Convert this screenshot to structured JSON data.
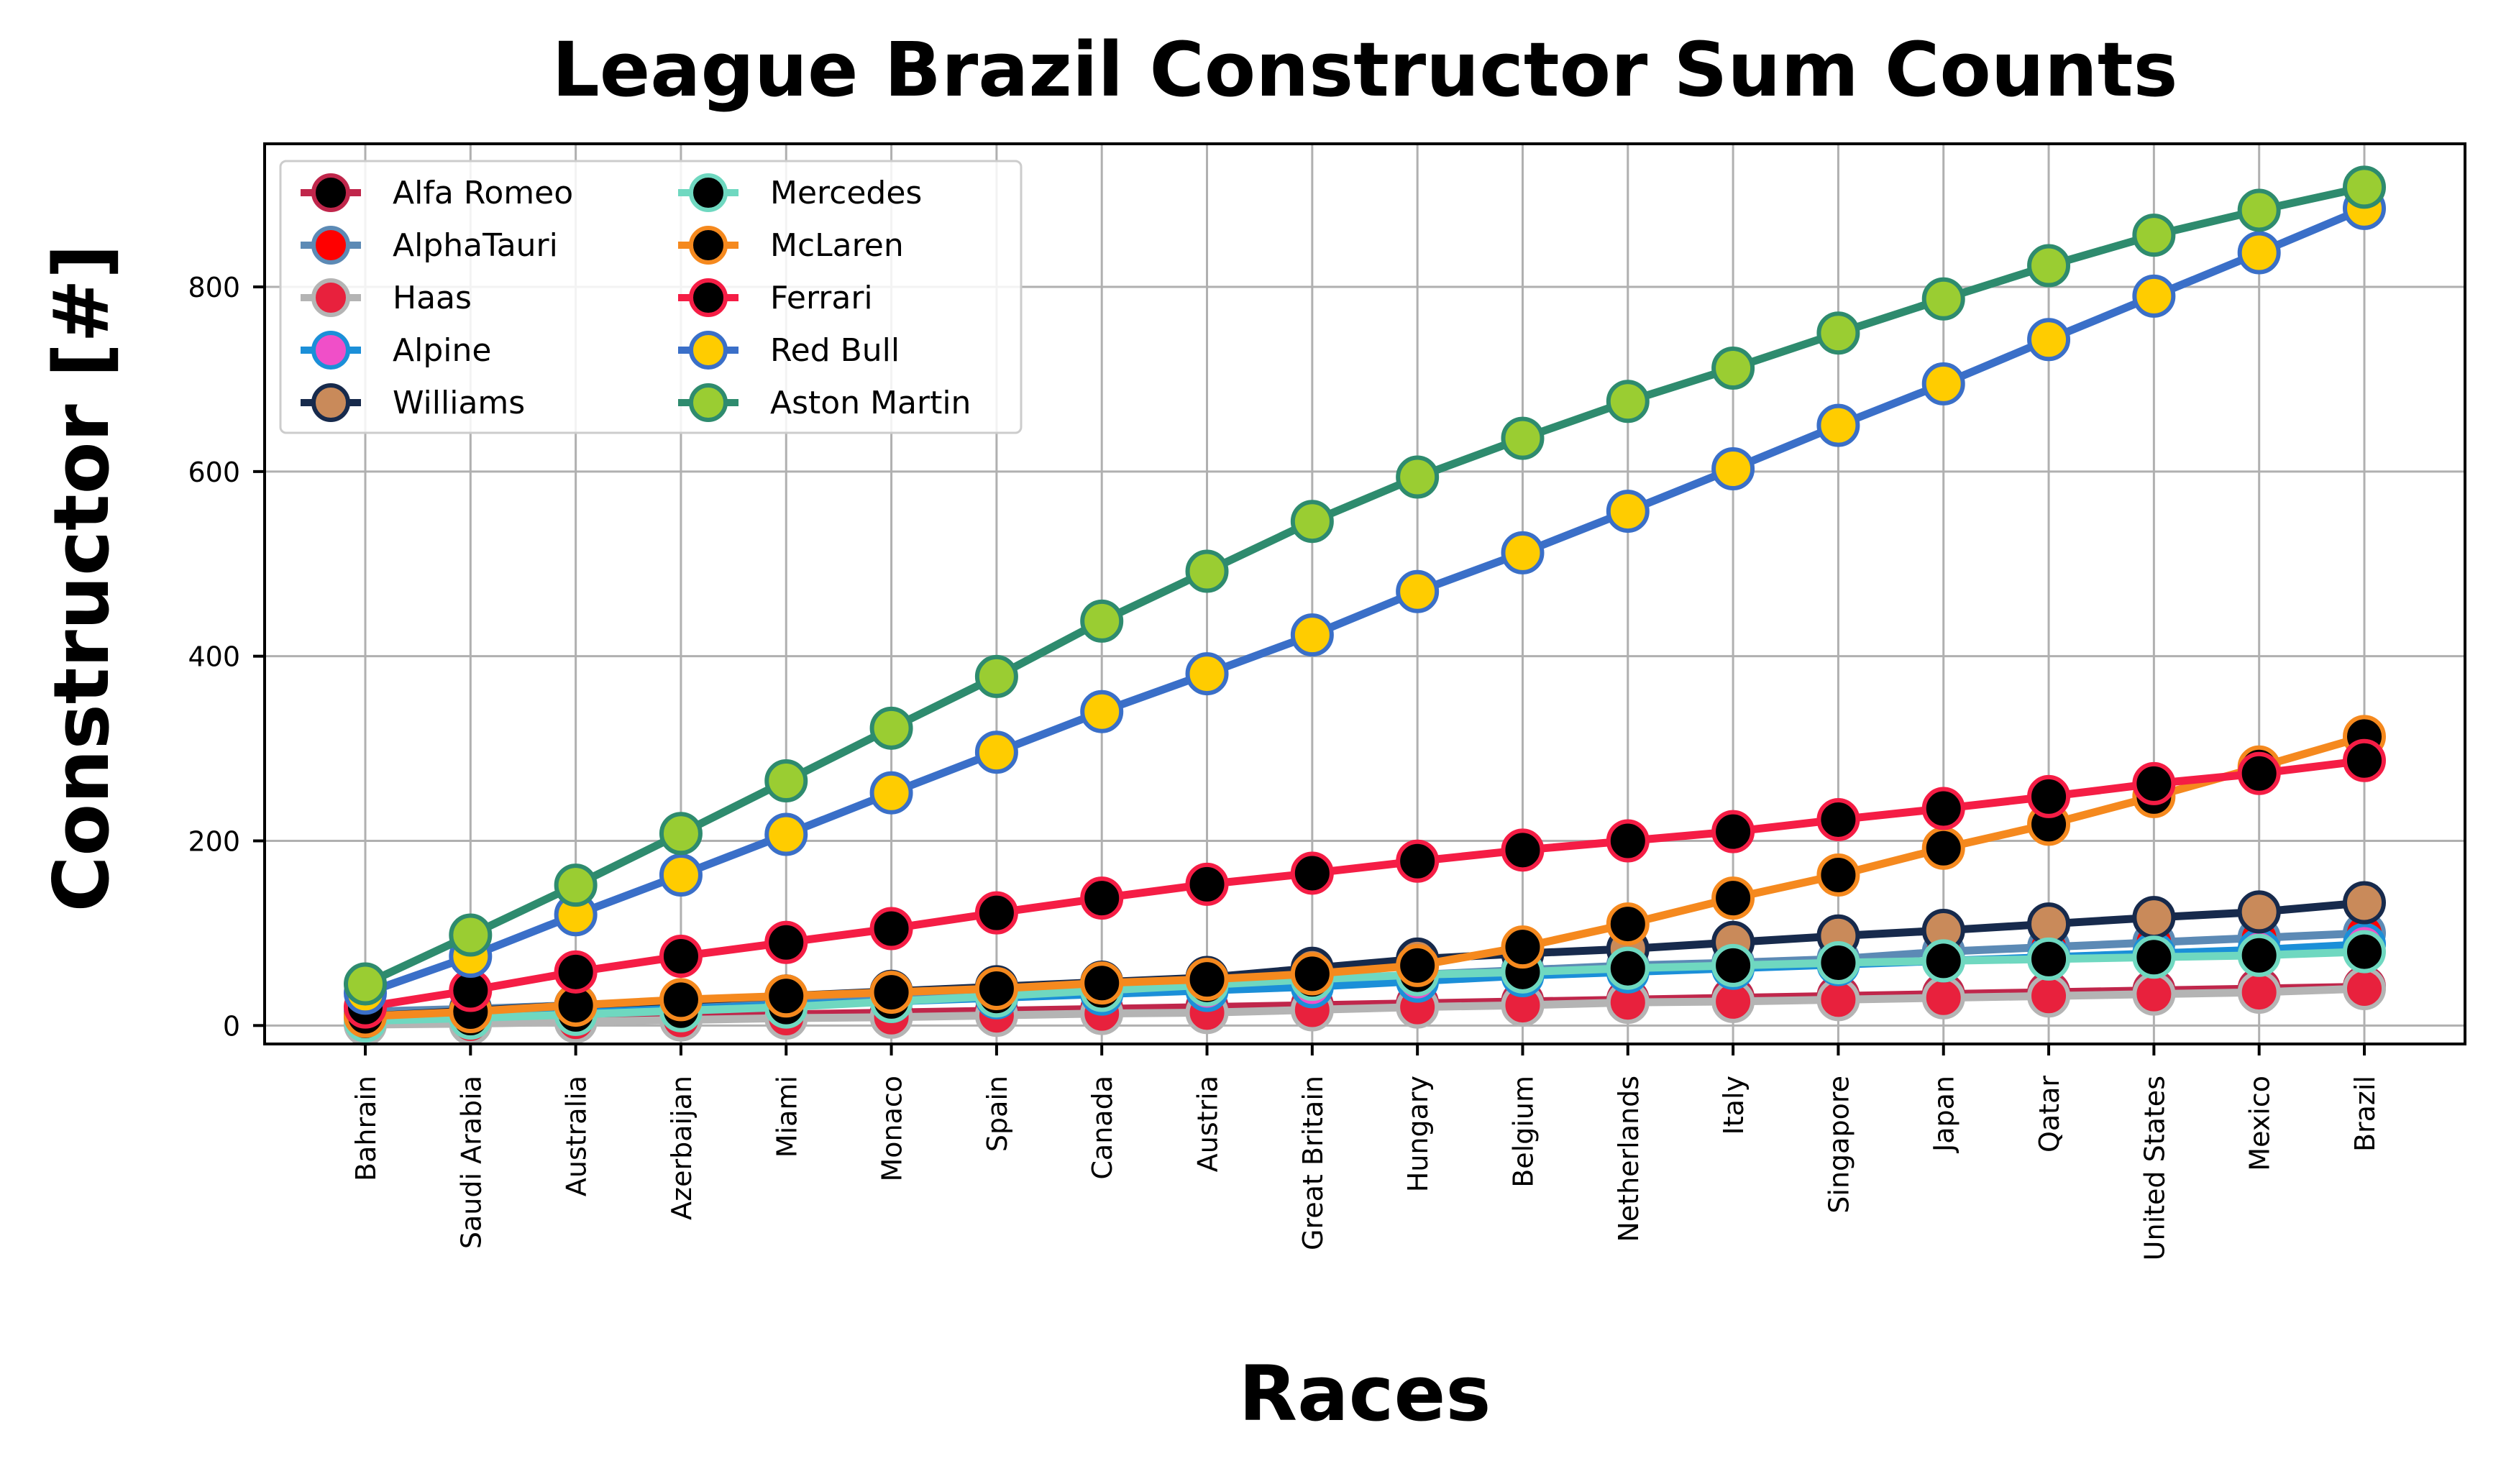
{
  "chart_data": {
    "type": "line",
    "title": "League Brazil Constructor Sum Counts",
    "xlabel": "Races",
    "ylabel": "Constructor [#]",
    "categories": [
      "Bahrain",
      "Saudi Arabia",
      "Australia",
      "Azerbaijan",
      "Miami",
      "Monaco",
      "Spain",
      "Canada",
      "Austria",
      "Great Britain",
      "Hungary",
      "Belgium",
      "Netherlands",
      "Italy",
      "Singapore",
      "Japan",
      "Qatar",
      "United States",
      "Mexico",
      "Brazil"
    ],
    "ylim": [
      -20,
      955
    ],
    "yticks": [
      0,
      200,
      400,
      600,
      800
    ],
    "grid": true,
    "legend_position": "upper-left",
    "legend_columns": 2,
    "series": [
      {
        "name": "Alfa Romeo",
        "line_color": "#C0264B",
        "marker_fill": "#000000",
        "marker_edge": "#C0264B",
        "values": [
          2,
          5,
          8,
          10,
          12,
          14,
          16,
          18,
          20,
          22,
          24,
          26,
          28,
          30,
          32,
          34,
          36,
          38,
          40,
          42
        ]
      },
      {
        "name": "AlphaTauri",
        "line_color": "#5C8AB5",
        "marker_fill": "#FF0000",
        "marker_edge": "#5C8AB5",
        "values": [
          15,
          18,
          22,
          25,
          27,
          30,
          36,
          40,
          45,
          48,
          55,
          60,
          65,
          68,
          72,
          80,
          85,
          90,
          95,
          100
        ]
      },
      {
        "name": "Haas",
        "line_color": "#B4B4B4",
        "marker_fill": "#E8213D",
        "marker_edge": "#B4B4B4",
        "values": [
          1,
          2,
          4,
          6,
          8,
          9,
          11,
          13,
          14,
          17,
          20,
          22,
          25,
          26,
          28,
          30,
          32,
          34,
          36,
          40
        ]
      },
      {
        "name": "Alpine",
        "line_color": "#1B8FD8",
        "marker_fill": "#F04FC8",
        "marker_edge": "#1B8FD8",
        "values": [
          8,
          10,
          14,
          18,
          22,
          26,
          30,
          34,
          38,
          42,
          48,
          54,
          58,
          62,
          66,
          70,
          74,
          78,
          82,
          88
        ]
      },
      {
        "name": "Williams",
        "line_color": "#172A4C",
        "marker_fill": "#C98A5A",
        "marker_edge": "#172A4C",
        "values": [
          10,
          16,
          22,
          27,
          32,
          37,
          42,
          47,
          52,
          62,
          72,
          78,
          83,
          90,
          97,
          103,
          110,
          117,
          123,
          133
        ]
      },
      {
        "name": "Mercedes",
        "line_color": "#6FD8C0",
        "marker_fill": "#000000",
        "marker_edge": "#6FD8C0",
        "values": [
          5,
          8,
          12,
          16,
          20,
          26,
          32,
          38,
          44,
          50,
          55,
          58,
          62,
          65,
          68,
          70,
          72,
          74,
          76,
          80
        ]
      },
      {
        "name": "McLaren",
        "line_color": "#F5891E",
        "marker_fill": "#000000",
        "marker_edge": "#F5891E",
        "values": [
          10,
          15,
          22,
          28,
          32,
          36,
          40,
          46,
          50,
          56,
          65,
          85,
          110,
          138,
          163,
          192,
          218,
          248,
          280,
          313
        ]
      },
      {
        "name": "Ferrari",
        "line_color": "#F51D45",
        "marker_fill": "#000000",
        "marker_edge": "#F51D45",
        "values": [
          20,
          38,
          58,
          75,
          90,
          105,
          122,
          138,
          153,
          165,
          178,
          190,
          200,
          210,
          223,
          235,
          248,
          262,
          273,
          287
        ]
      },
      {
        "name": "Red Bull",
        "line_color": "#3A6FC8",
        "marker_fill": "#FFCC00",
        "marker_edge": "#3A6FC8",
        "values": [
          35,
          75,
          120,
          163,
          207,
          252,
          296,
          340,
          381,
          423,
          470,
          512,
          557,
          603,
          650,
          695,
          743,
          790,
          837,
          885
        ]
      },
      {
        "name": "Aston Martin",
        "line_color": "#2E8B6E",
        "marker_fill": "#9ACD32",
        "marker_edge": "#2E8B6E",
        "values": [
          45,
          98,
          152,
          208,
          265,
          322,
          378,
          438,
          492,
          546,
          594,
          636,
          676,
          712,
          750,
          787,
          823,
          856,
          883,
          908
        ]
      }
    ]
  }
}
